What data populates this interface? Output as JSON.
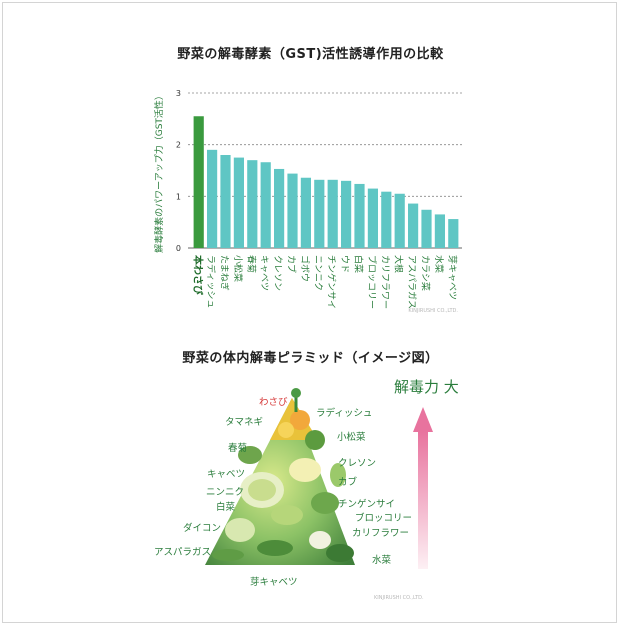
{
  "chart_data": {
    "type": "bar",
    "title": "野菜の解毒酵素（GST)活性誘導作用の比較",
    "ylabel": "解毒酵素のパワーアップ力（GST活性）",
    "xlabel": "",
    "ylim": [
      0,
      3
    ],
    "yticks": [
      "0",
      "1",
      "2",
      "3"
    ],
    "grid": true,
    "categories": [
      "本わさび",
      "ラディッシュ",
      "たまねぎ",
      "小松菜",
      "春菊",
      "キャベツ",
      "クレソン",
      "カブ",
      "ゴボウ",
      "ニンニク",
      "チンゲンサイ",
      "ウド",
      "白菜",
      "ブロッコリー",
      "カリフラワー",
      "大根",
      "アスパラガス",
      "カラシ菜",
      "水菜",
      "芽キャベツ"
    ],
    "values": [
      2.55,
      1.9,
      1.8,
      1.75,
      1.7,
      1.66,
      1.53,
      1.44,
      1.36,
      1.32,
      1.32,
      1.3,
      1.24,
      1.15,
      1.09,
      1.05,
      0.86,
      0.74,
      0.65,
      0.56
    ],
    "colors": {
      "highlight": "#3a9a3e",
      "bar": "#5fc6c4",
      "grid": "#888888"
    },
    "credit": "KINJIRUSHI CO.,LTD."
  },
  "pyramid": {
    "title": "野菜の体内解毒ピラミッド（イメージ図）",
    "arrow_label": "解毒力 大",
    "highlight": "わさび",
    "labels_left": [
      "タマネギ",
      "春菊",
      "キャベツ",
      "ニンニク",
      "白菜",
      "ダイコン",
      "アスパラガス"
    ],
    "labels_right": [
      "ラディッシュ",
      "小松菜",
      "クレソン",
      "カブ",
      "チンゲンサイ",
      "ブロッコリー",
      "カリフラワー",
      "水菜"
    ],
    "label_bottom": "芽キャベツ",
    "credit": "KINJIRUSHI CO.,LTD."
  }
}
